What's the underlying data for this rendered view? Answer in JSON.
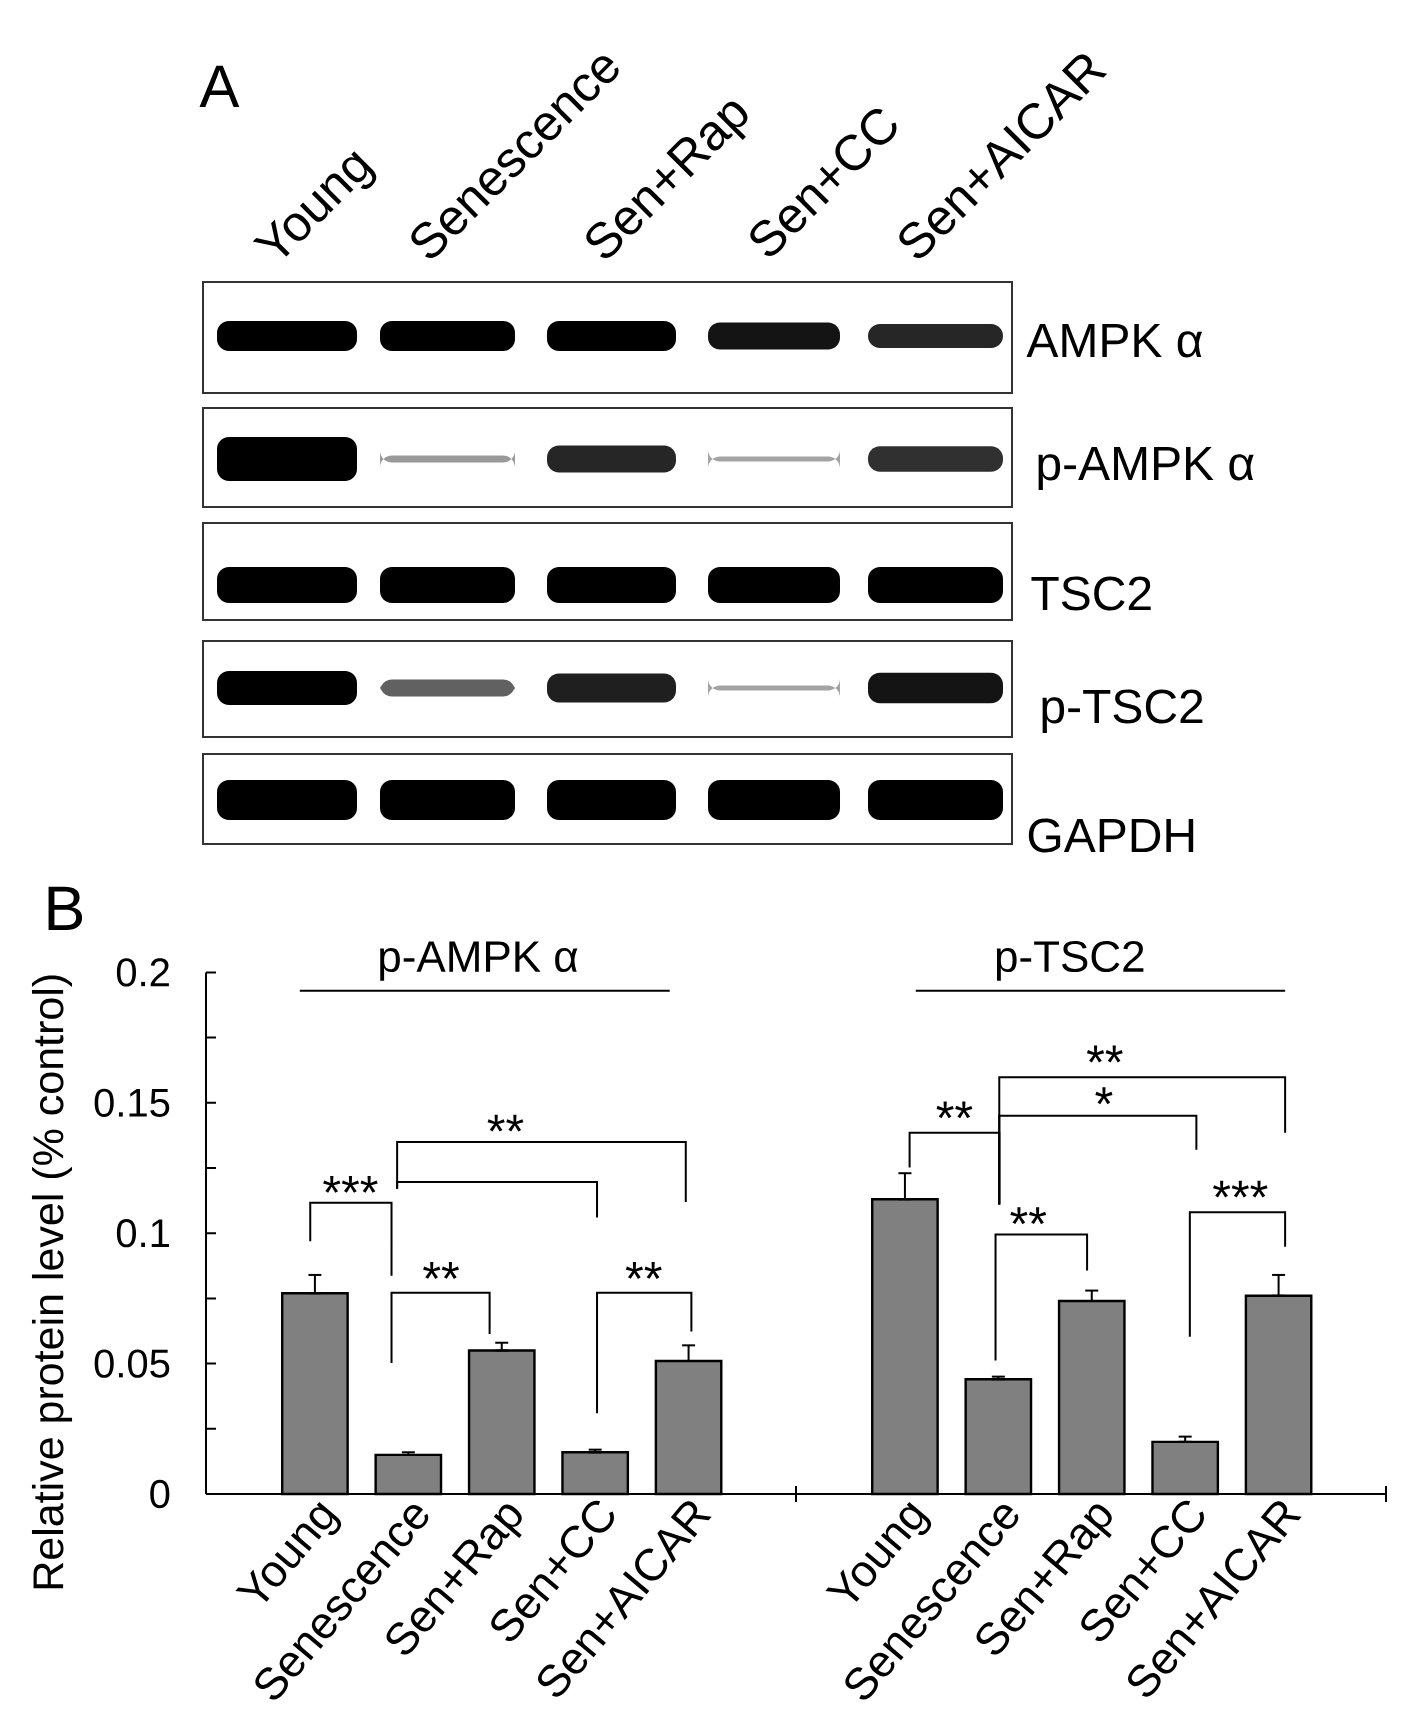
{
  "chart_data": [
    {
      "type": "other",
      "annotations": [
        "A",
        "Young",
        "Senescence",
        "Sen+Rap",
        "Sen+CC",
        "Sen+AICAR",
        "AMPK α",
        "p-AMPK α",
        "TSC2",
        "p-TSC2",
        "GAPDH"
      ]
    },
    {
      "type": "bar",
      "ylabel": "Relative protein level (% control)",
      "categories": [
        "Young",
        "Senescence",
        "Sen+Rap",
        "Sen+CC",
        "Sen+AICAR"
      ],
      "values": [
        0.077,
        0.015,
        0.055,
        0.016,
        0.051
      ],
      "errors": [
        [
          0.077,
          0.084
        ],
        [
          0.015,
          0.016
        ],
        [
          0.055,
          0.058
        ],
        [
          0.016,
          0.017
        ],
        [
          0.051,
          0.057
        ]
      ],
      "color": "#808080",
      "ylim": [
        0,
        0.2
      ],
      "yticks": [
        0,
        0.05,
        0.1,
        0.15,
        0.2
      ],
      "ref_lines": [
        {
          "axis": "y",
          "value": 0.193,
          "label": "p-AMPK α"
        }
      ],
      "annotations": [
        "B",
        "**",
        "***",
        "**",
        "**"
      ]
    },
    {
      "type": "bar",
      "categories": [
        "Young",
        "Senescence",
        "Sen+Rap",
        "Sen+CC",
        "Sen+AICAR"
      ],
      "values": [
        0.113,
        0.044,
        0.074,
        0.02,
        0.076
      ],
      "errors": [
        [
          0.113,
          0.123
        ],
        [
          0.044,
          0.045
        ],
        [
          0.074,
          0.078
        ],
        [
          0.02,
          0.022
        ],
        [
          0.076,
          0.084
        ]
      ],
      "color": "#808080",
      "ylim": [
        0,
        0.2
      ],
      "tick_labels": "x",
      "ref_lines": [
        {
          "axis": "y",
          "value": 0.193,
          "label": "p-TSC2"
        }
      ],
      "annotations": [
        "**",
        "*",
        "**",
        "***",
        "**"
      ]
    }
  ]
}
